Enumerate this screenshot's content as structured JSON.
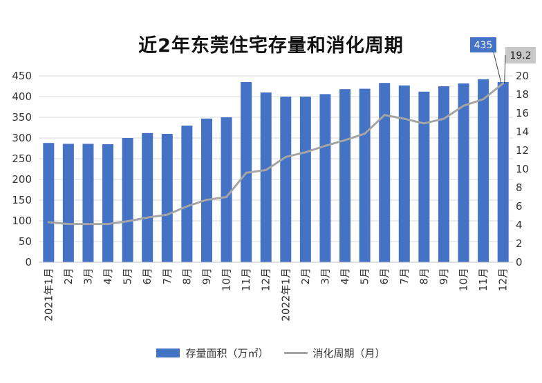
{
  "chart_data": {
    "type": "bar",
    "title": "近2年东莞住宅存量和消化周期",
    "categories": [
      "2021年1月",
      "2月",
      "3月",
      "4月",
      "5月",
      "6月",
      "7月",
      "8月",
      "9月",
      "10月",
      "11月",
      "12月",
      "2022年1月",
      "2月",
      "3月",
      "4月",
      "5月",
      "6月",
      "7月",
      "8月",
      "9月",
      "10月",
      "11月",
      "12月"
    ],
    "series": [
      {
        "name": "存量面积（万㎡）",
        "type": "bar",
        "axis": "left",
        "color": "#4472c4",
        "values": [
          288,
          286,
          286,
          285,
          300,
          312,
          310,
          330,
          347,
          350,
          435,
          410,
          400,
          400,
          406,
          418,
          419,
          433,
          427,
          412,
          425,
          432,
          442,
          435
        ]
      },
      {
        "name": "消化周期（月）",
        "type": "line",
        "axis": "right",
        "color": "#a5a5a5",
        "values": [
          4.3,
          4.1,
          4.1,
          4.1,
          4.4,
          4.8,
          5.1,
          6.0,
          6.7,
          7.0,
          9.6,
          9.9,
          11.3,
          11.8,
          12.5,
          13.1,
          13.8,
          15.8,
          15.4,
          14.9,
          15.4,
          16.8,
          17.5,
          19.2
        ]
      }
    ],
    "y_left": {
      "min": 0,
      "max": 450,
      "ticks": [
        0,
        50,
        100,
        150,
        200,
        250,
        300,
        350,
        400,
        450
      ]
    },
    "y_right": {
      "min": 0,
      "max": 20,
      "ticks": [
        0,
        2,
        4,
        6,
        8,
        10,
        12,
        14,
        16,
        18,
        20
      ]
    },
    "annotations": [
      {
        "text": "435",
        "series": "存量面积（万㎡）",
        "index": 23,
        "box_color": "#4472c4",
        "text_color": "#ffffff"
      },
      {
        "text": "19.2",
        "series": "消化周期（月）",
        "index": 23,
        "box_color": "#c8c8c8",
        "text_color": "#222222"
      }
    ],
    "grid": true,
    "legend_position": "bottom"
  },
  "legend": {
    "bar_label": "存量面积（万㎡）",
    "line_label": "消化周期（月）"
  }
}
